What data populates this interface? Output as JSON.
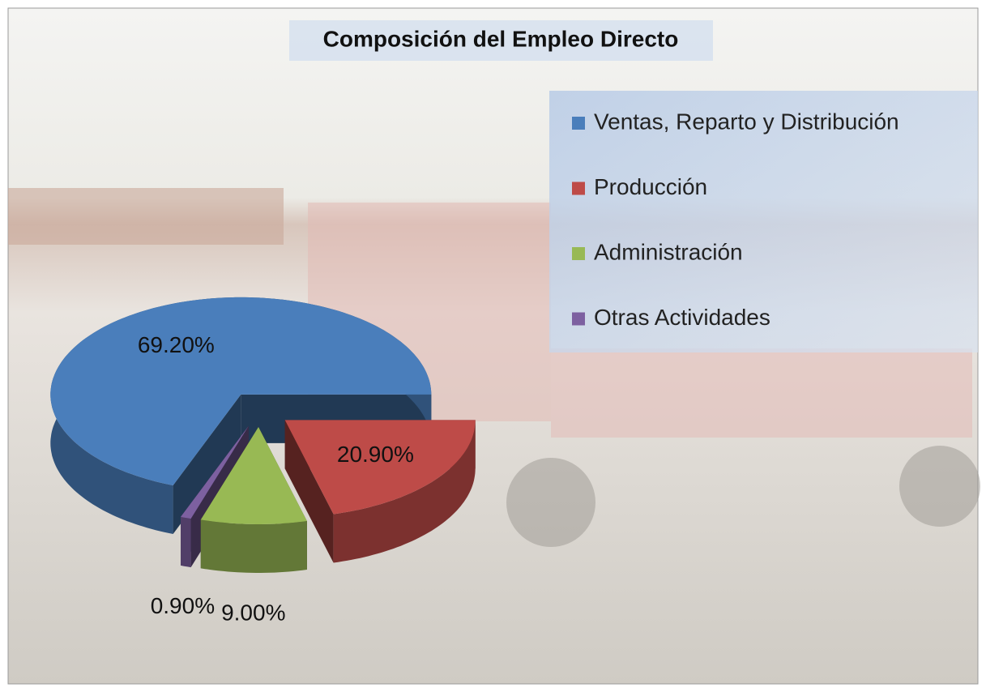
{
  "chart_data": {
    "type": "pie",
    "title": "Composición del Empleo Directo",
    "categories": [
      "Producción",
      "Administración",
      "Otras Actividades",
      "Ventas, Reparto y Distribución"
    ],
    "values": [
      20.9,
      9.0,
      0.9,
      69.2
    ],
    "value_labels": [
      "20.90%",
      "9.00%",
      "0.90%",
      "69.20%"
    ],
    "colors": [
      "#be4b48",
      "#98b954",
      "#7d60a0",
      "#4a7ebb"
    ],
    "legend": "top-right",
    "legend_order": [
      3,
      0,
      1,
      2
    ]
  }
}
